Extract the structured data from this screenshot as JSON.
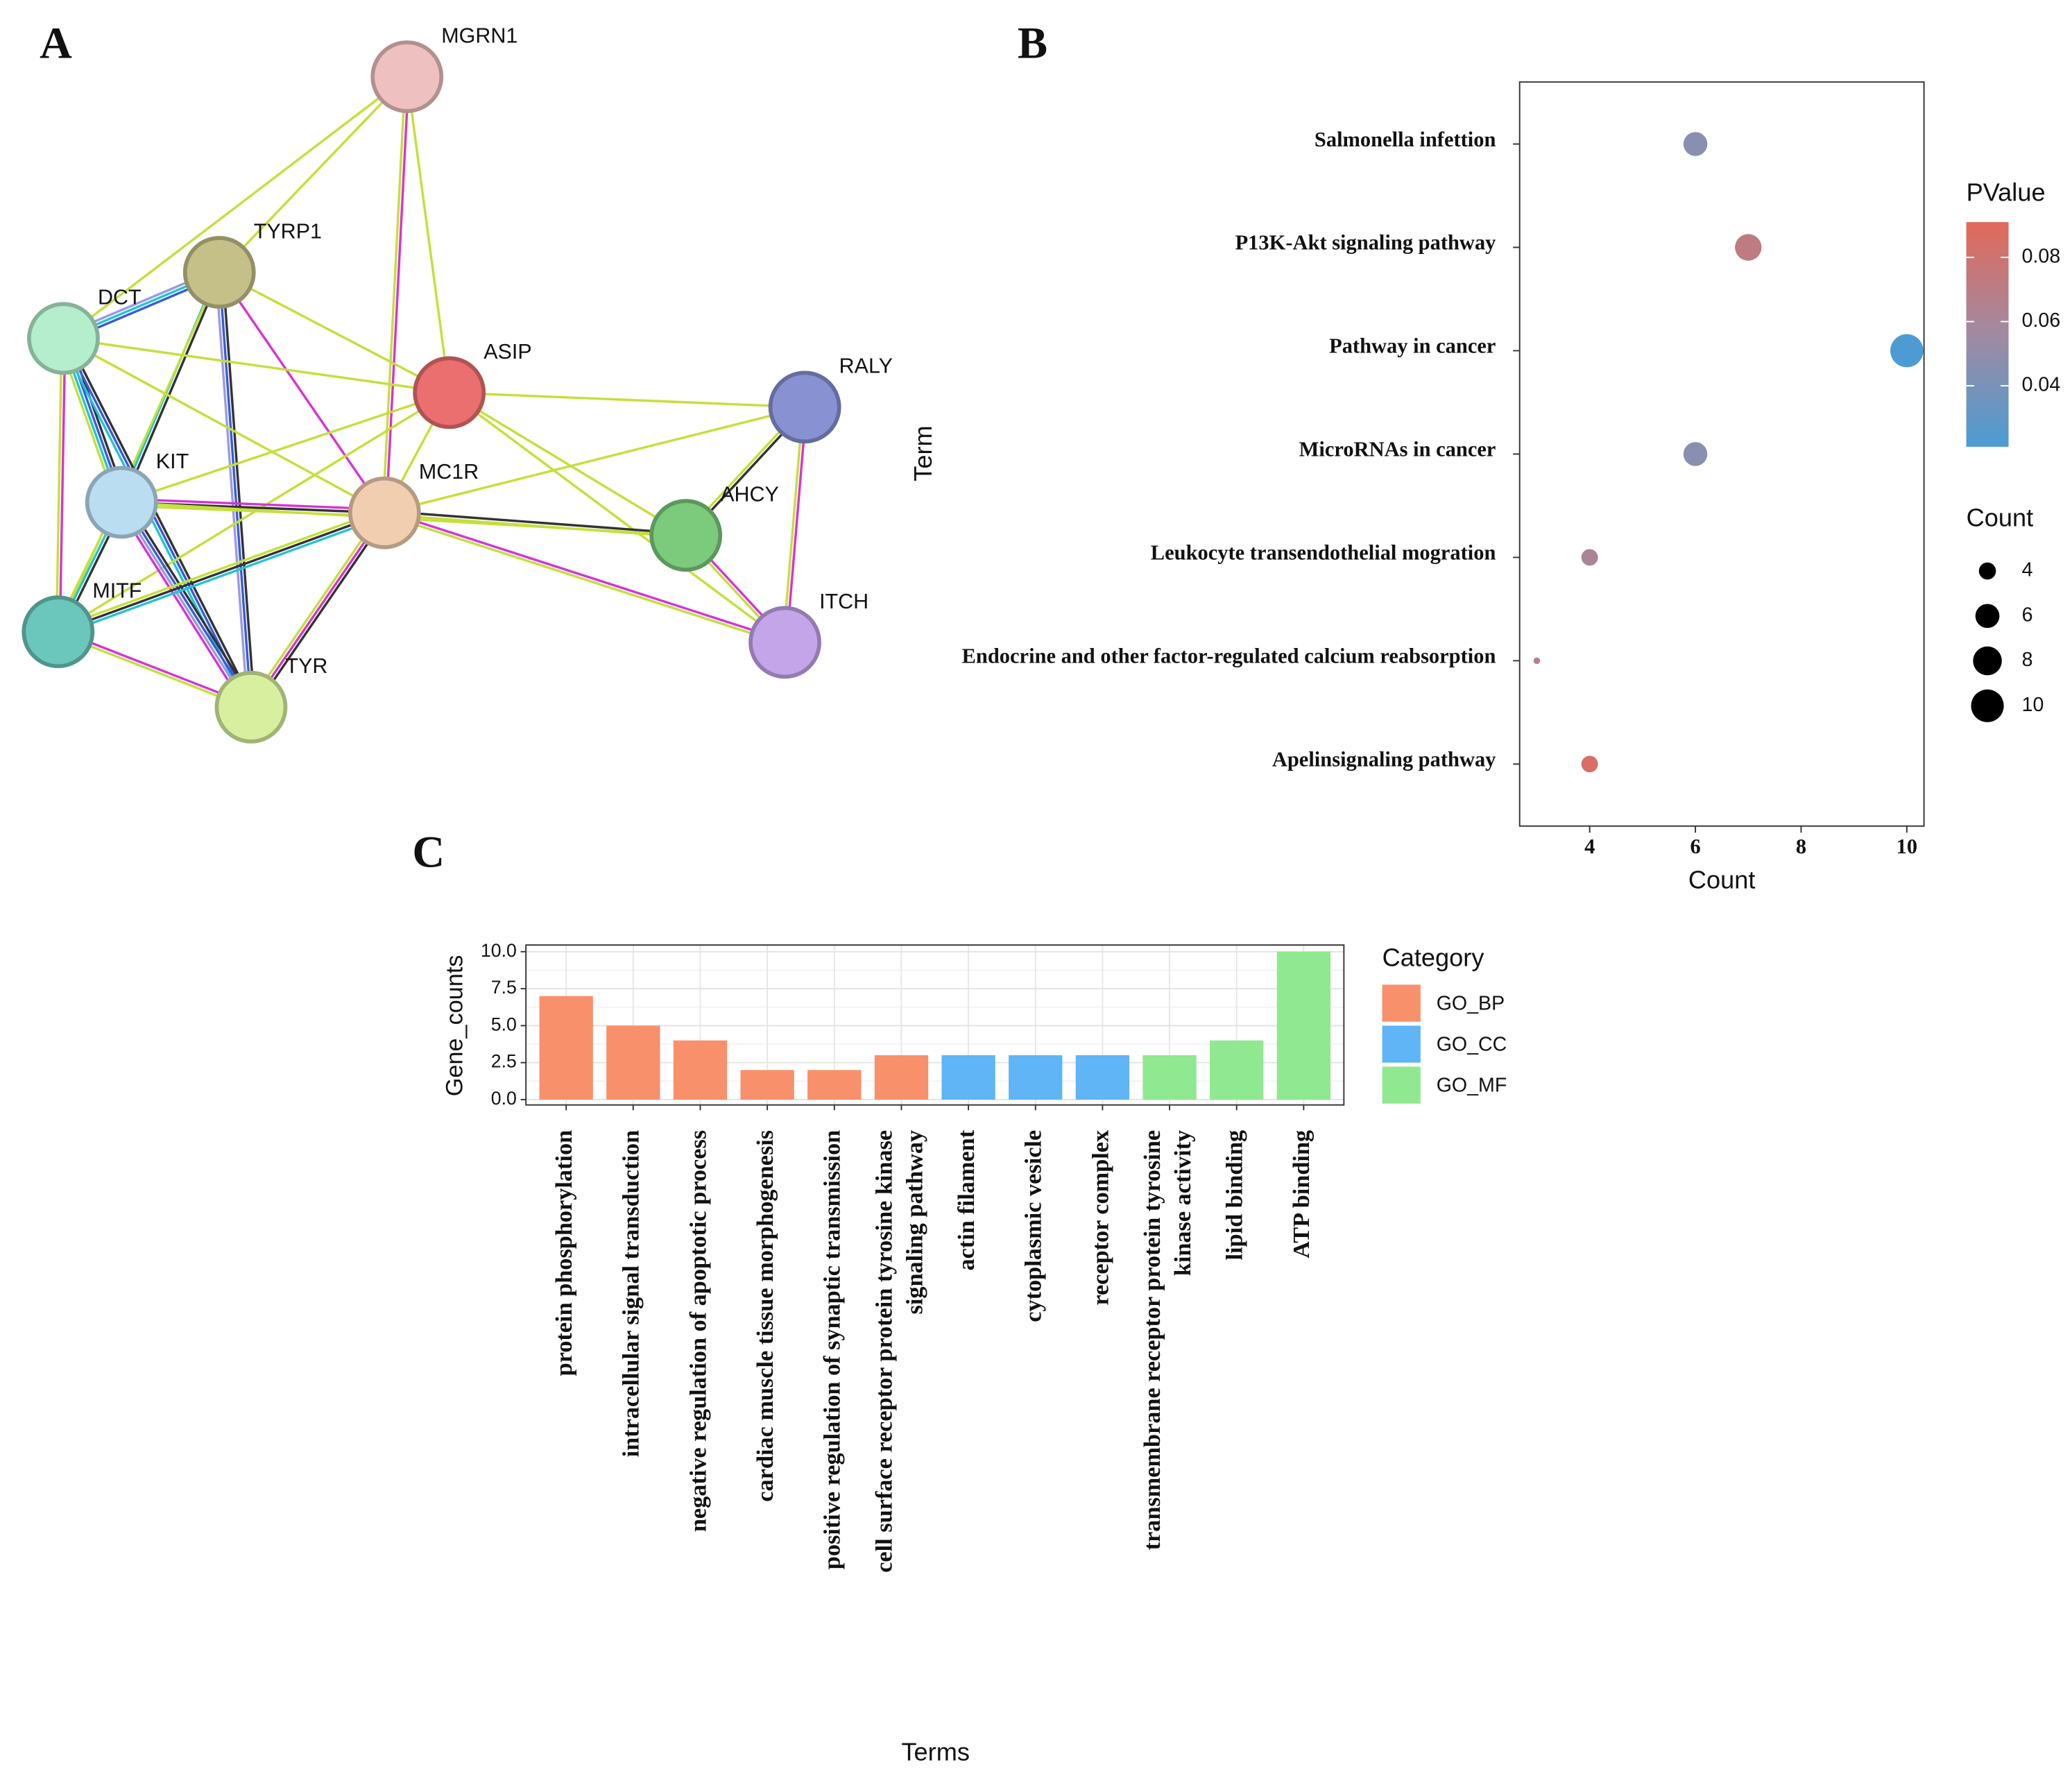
{
  "chart_data": [
    {
      "type": "network",
      "panel_label": "A",
      "nodes": [
        {
          "label": "MGRN1",
          "color": "#f5c6c6"
        },
        {
          "label": "TYRP1",
          "color": "#cbc68c"
        },
        {
          "label": "DCT",
          "color": "#baf5d2"
        },
        {
          "label": "ASIP",
          "color": "#f27272"
        },
        {
          "label": "RALY",
          "color": "#8c95d9"
        },
        {
          "label": "KIT",
          "color": "#c0e4f8"
        },
        {
          "label": "MC1R",
          "color": "#f9d4b6"
        },
        {
          "label": "AHCY",
          "color": "#80d080"
        },
        {
          "label": "MITF",
          "color": "#6ecdc1"
        },
        {
          "label": "ITCH",
          "color": "#caaaf1"
        },
        {
          "label": "TYR",
          "color": "#dff6a4"
        }
      ]
    },
    {
      "type": "dot",
      "panel_label": "B",
      "categories": [
        "Salmonella infettion",
        "P13K-Akt signaling pathway",
        "Pathway in cancer",
        "MicroRNAs in cancer",
        "Leukocyte transendothelial mogration",
        "Endocrine and other factor-regulated calcium reabsorption",
        "Apelinsignaling pathway"
      ],
      "values": [
        6,
        7,
        10,
        6,
        4,
        3,
        4
      ],
      "pvalues": [
        0.046,
        0.072,
        0.022,
        0.046,
        0.062,
        0.066,
        0.086
      ],
      "xlabel": "Count",
      "ylabel": "Term",
      "xlim": [
        2.675,
        10.325
      ],
      "xticks": [
        4,
        6,
        8,
        10
      ],
      "color_title": "PValue",
      "clim": [
        0.021,
        0.091
      ],
      "cticks": [
        0.04,
        0.06,
        0.08
      ],
      "colorscale": [
        "#4b9cd3",
        "#a08aa2",
        "#e2695a"
      ],
      "size_title": "Count",
      "size_ticks": [
        4,
        6,
        8,
        10
      ]
    },
    {
      "type": "bar",
      "panel_label": "C",
      "categories": [
        "protein phosphorylation",
        "intracellular signal transduction",
        "negative regulation of apoptotic process",
        "cardiac muscle tissue morphogenesis",
        "positive regulation of synaptic transmission",
        "cell surface receptor protein tyrosine kinase\nsignaling pathway",
        "actin filament",
        "cytoplasmic vesicle",
        "receptor complex",
        "transmembrane receptor protein tyrosine\nkinase activity",
        "lipid binding",
        "ATP binding"
      ],
      "series": [
        {
          "name": "GO_BP",
          "color": "#f8906c",
          "values": [
            7,
            5,
            4,
            2,
            2,
            3,
            null,
            null,
            null,
            null,
            null,
            null
          ]
        },
        {
          "name": "GO_CC",
          "color": "#5fb5f5",
          "values": [
            null,
            null,
            null,
            null,
            null,
            null,
            3,
            3,
            3,
            null,
            null,
            null
          ]
        },
        {
          "name": "GO_MF",
          "color": "#90e890",
          "values": [
            null,
            null,
            null,
            null,
            null,
            null,
            null,
            null,
            null,
            3,
            4,
            10
          ]
        }
      ],
      "xlabel": "Terms",
      "ylabel": "Gene_counts",
      "legend_title": "Category",
      "ylim": [
        -0.36,
        10.45
      ],
      "yticks": [
        {
          "value": 0,
          "label": "0.0"
        },
        {
          "value": 2.5,
          "label": "2.5"
        },
        {
          "value": 5,
          "label": "5.0"
        },
        {
          "value": 7.5,
          "label": "7.5"
        },
        {
          "value": 10,
          "label": "10.0"
        }
      ],
      "grid": true
    }
  ]
}
